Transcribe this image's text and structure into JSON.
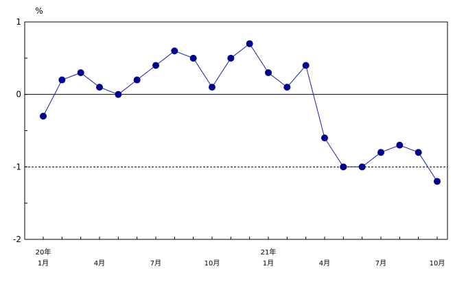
{
  "chart_data": {
    "type": "line",
    "unit_label": "%",
    "ylim": [
      -2,
      1
    ],
    "y_ticks": [
      {
        "value": 1,
        "label": "1"
      },
      {
        "value": 0,
        "label": "0"
      },
      {
        "value": -1,
        "label": "-1"
      },
      {
        "value": -2,
        "label": "-2"
      }
    ],
    "x": [
      "20年1月",
      "20年2月",
      "20年3月",
      "20年4月",
      "20年5月",
      "20年6月",
      "20年7月",
      "20年8月",
      "20年9月",
      "20年10月",
      "20年11月",
      "20年12月",
      "21年1月",
      "21年2月",
      "21年3月",
      "21年4月",
      "21年5月",
      "21年6月",
      "21年7月",
      "21年8月",
      "21年9月",
      "21年10月"
    ],
    "values": [
      -0.3,
      0.2,
      0.3,
      0.1,
      0.0,
      0.2,
      0.4,
      0.6,
      0.5,
      0.1,
      0.5,
      0.7,
      0.3,
      0.1,
      0.4,
      -0.6,
      -1.0,
      -1.0,
      -0.8,
      -0.7,
      -0.8,
      -1.2
    ],
    "x_tick_labels": [
      {
        "index": 0,
        "year": "20年",
        "month": "1月"
      },
      {
        "index": 3,
        "year": "",
        "month": "4月"
      },
      {
        "index": 6,
        "year": "",
        "month": "7月"
      },
      {
        "index": 9,
        "year": "",
        "month": "10月"
      },
      {
        "index": 12,
        "year": "21年",
        "month": "1月"
      },
      {
        "index": 15,
        "year": "",
        "month": "4月"
      },
      {
        "index": 18,
        "year": "",
        "month": "7月"
      },
      {
        "index": 21,
        "year": "",
        "month": "10月"
      }
    ],
    "reference_lines": [
      {
        "value": 0,
        "style": "solid"
      },
      {
        "value": -1,
        "style": "dashed"
      }
    ],
    "colors": {
      "line": "#1a1aa8",
      "marker": "#00008b",
      "axis": "#000000"
    },
    "grid": false,
    "legend": false
  }
}
